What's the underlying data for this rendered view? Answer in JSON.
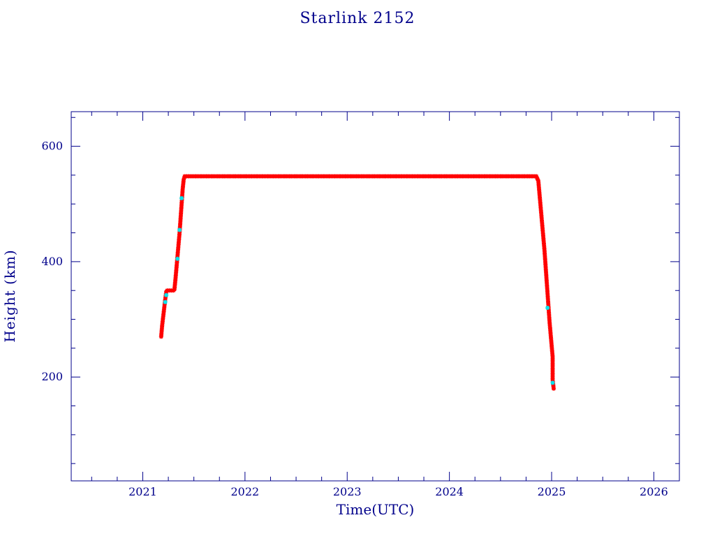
{
  "chart_data": {
    "type": "scatter",
    "title": "Starlink 2152",
    "xlabel": "Time(UTC)",
    "ylabel": "Height (km)",
    "xlim": [
      2020.3,
      2026.25
    ],
    "ylim": [
      20,
      660
    ],
    "x_ticks": [
      2021,
      2022,
      2023,
      2024,
      2025,
      2026
    ],
    "x_tick_labels": [
      "2021",
      "2022",
      "2023",
      "2024",
      "2025",
      "2026"
    ],
    "y_ticks": [
      200,
      400,
      600
    ],
    "y_tick_labels": [
      "200",
      "400",
      "600"
    ],
    "grid": false,
    "legend": "none",
    "colors": {
      "axis": "#00008b",
      "primary_marker": "#ff0000",
      "secondary_marker": "#00e5ee",
      "marker_outline": "#555555"
    },
    "series": [
      {
        "color": "#ff0000",
        "points": [
          [
            2021.18,
            270
          ],
          [
            2021.19,
            290
          ],
          [
            2021.2,
            305
          ],
          [
            2021.21,
            320
          ],
          [
            2021.22,
            335
          ],
          [
            2021.23,
            348
          ],
          [
            2021.24,
            350
          ],
          [
            2021.26,
            350
          ],
          [
            2021.28,
            350
          ],
          [
            2021.3,
            350
          ],
          [
            2021.31,
            352
          ],
          [
            2021.32,
            370
          ],
          [
            2021.33,
            390
          ],
          [
            2021.34,
            410
          ],
          [
            2021.35,
            430
          ],
          [
            2021.36,
            450
          ],
          [
            2021.37,
            475
          ],
          [
            2021.38,
            500
          ],
          [
            2021.39,
            525
          ],
          [
            2021.4,
            542
          ],
          [
            2021.41,
            548
          ],
          [
            2021.5,
            548
          ],
          [
            2021.75,
            548
          ],
          [
            2022.0,
            548
          ],
          [
            2022.25,
            548
          ],
          [
            2022.5,
            548
          ],
          [
            2022.75,
            548
          ],
          [
            2023.0,
            548
          ],
          [
            2023.25,
            548
          ],
          [
            2023.5,
            548
          ],
          [
            2023.75,
            548
          ],
          [
            2024.0,
            548
          ],
          [
            2024.25,
            548
          ],
          [
            2024.5,
            548
          ],
          [
            2024.75,
            548
          ],
          [
            2024.85,
            548
          ],
          [
            2024.87,
            540
          ],
          [
            2024.88,
            520
          ],
          [
            2024.89,
            500
          ],
          [
            2024.9,
            480
          ],
          [
            2024.91,
            460
          ],
          [
            2024.92,
            440
          ],
          [
            2024.93,
            420
          ],
          [
            2024.94,
            395
          ],
          [
            2024.95,
            370
          ],
          [
            2024.96,
            345
          ],
          [
            2024.97,
            320
          ],
          [
            2024.98,
            295
          ],
          [
            2024.99,
            275
          ],
          [
            2025.0,
            255
          ],
          [
            2025.01,
            235
          ],
          [
            2025.01,
            215
          ],
          [
            2025.01,
            195
          ],
          [
            2025.02,
            180
          ]
        ]
      },
      {
        "color": "#00e5ee",
        "points": [
          [
            2021.22,
            330
          ],
          [
            2021.23,
            342
          ],
          [
            2021.34,
            405
          ],
          [
            2021.36,
            455
          ],
          [
            2021.38,
            510
          ],
          [
            2024.96,
            320
          ],
          [
            2025.01,
            190
          ]
        ]
      }
    ]
  }
}
